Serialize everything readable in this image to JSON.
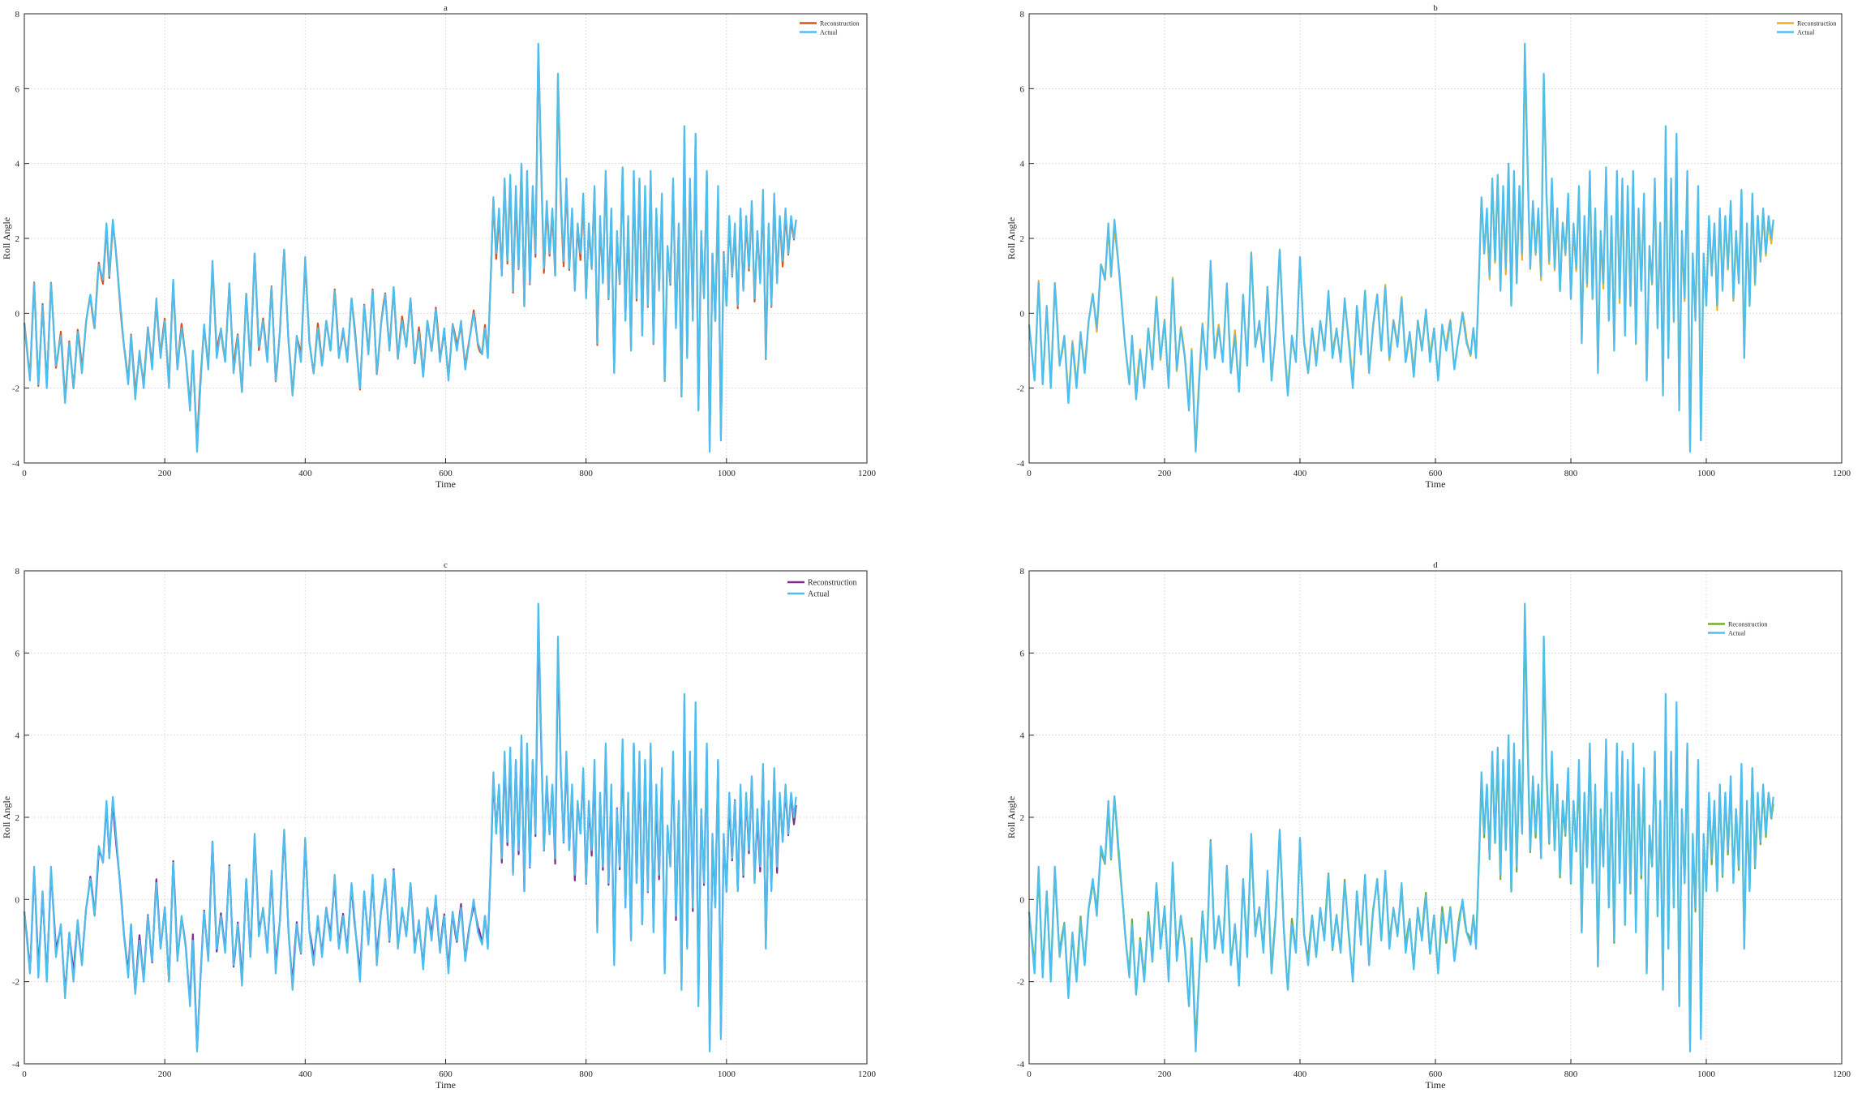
{
  "figure": {
    "background": "#ffffff",
    "actual_color": "#4dbeee"
  },
  "chart_data": [
    {
      "type": "line",
      "title": "a",
      "xlabel": "Time",
      "ylabel": "Roll Angle",
      "xlim": [
        0,
        1200
      ],
      "ylim": [
        -4,
        8
      ],
      "xticks": [
        0,
        200,
        400,
        600,
        800,
        1000,
        1200
      ],
      "yticks": [
        -4,
        -2,
        0,
        2,
        4,
        6,
        8
      ],
      "grid": true,
      "legend_position": "top-right",
      "series": [
        {
          "name": "Reconstruction",
          "color": "#d95319"
        },
        {
          "name": "Actual",
          "color": "#4dbeee"
        }
      ]
    },
    {
      "type": "line",
      "title": "b",
      "xlabel": "Time",
      "ylabel": "Roll Angle",
      "xlim": [
        0,
        1200
      ],
      "ylim": [
        -4,
        8
      ],
      "xticks": [
        0,
        200,
        400,
        600,
        800,
        1000,
        1200
      ],
      "yticks": [
        -4,
        -2,
        0,
        2,
        4,
        6,
        8
      ],
      "grid": true,
      "legend_position": "top-right",
      "series": [
        {
          "name": "Reconstruction",
          "color": "#edb120"
        },
        {
          "name": "Actual",
          "color": "#4dbeee"
        }
      ]
    },
    {
      "type": "line",
      "title": "c",
      "xlabel": "Time",
      "ylabel": "Roll Angle",
      "xlim": [
        0,
        1200
      ],
      "ylim": [
        -4,
        8
      ],
      "xticks": [
        0,
        200,
        400,
        600,
        800,
        1000,
        1200
      ],
      "yticks": [
        -4,
        -2,
        0,
        2,
        4,
        6,
        8
      ],
      "grid": true,
      "legend_position": "top-right",
      "series": [
        {
          "name": "Reconstruction",
          "color": "#7e2f8e"
        },
        {
          "name": "Actual",
          "color": "#4dbeee"
        }
      ]
    },
    {
      "type": "line",
      "title": "d",
      "xlabel": "Time",
      "ylabel": "Roll Angle",
      "xlim": [
        0,
        1200
      ],
      "ylim": [
        -4,
        8
      ],
      "xticks": [
        0,
        200,
        400,
        600,
        800,
        1000,
        1200
      ],
      "yticks": [
        -4,
        -2,
        0,
        2,
        4,
        6,
        8
      ],
      "grid": true,
      "legend_position": "upper-right",
      "series": [
        {
          "name": "Reconstruction",
          "color": "#77ac30"
        },
        {
          "name": "Actual",
          "color": "#4dbeee"
        }
      ]
    }
  ],
  "signal": {
    "length": 1100,
    "keypoints": [
      [
        0,
        -0.3
      ],
      [
        8,
        -1.8
      ],
      [
        14,
        0.8
      ],
      [
        20,
        -1.9
      ],
      [
        26,
        0.2
      ],
      [
        32,
        -2.0
      ],
      [
        38,
        0.8
      ],
      [
        45,
        -1.4
      ],
      [
        52,
        -0.6
      ],
      [
        58,
        -2.4
      ],
      [
        64,
        -0.8
      ],
      [
        70,
        -2.0
      ],
      [
        76,
        -0.5
      ],
      [
        82,
        -1.6
      ],
      [
        88,
        -0.2
      ],
      [
        94,
        0.5
      ],
      [
        100,
        -0.4
      ],
      [
        106,
        1.3
      ],
      [
        112,
        0.9
      ],
      [
        117,
        2.4
      ],
      [
        121,
        1.0
      ],
      [
        126,
        2.5
      ],
      [
        130,
        1.7
      ],
      [
        136,
        0.4
      ],
      [
        142,
        -0.9
      ],
      [
        148,
        -1.9
      ],
      [
        152,
        -0.6
      ],
      [
        158,
        -2.3
      ],
      [
        164,
        -1.0
      ],
      [
        170,
        -2.0
      ],
      [
        176,
        -0.4
      ],
      [
        182,
        -1.5
      ],
      [
        188,
        0.4
      ],
      [
        194,
        -1.2
      ],
      [
        200,
        -0.2
      ],
      [
        206,
        -2.0
      ],
      [
        212,
        0.9
      ],
      [
        218,
        -1.5
      ],
      [
        224,
        -0.4
      ],
      [
        230,
        -1.2
      ],
      [
        236,
        -2.6
      ],
      [
        240,
        -1.0
      ],
      [
        246,
        -3.7
      ],
      [
        250,
        -2.2
      ],
      [
        256,
        -0.3
      ],
      [
        262,
        -1.5
      ],
      [
        268,
        1.4
      ],
      [
        274,
        -1.2
      ],
      [
        280,
        -0.4
      ],
      [
        286,
        -1.3
      ],
      [
        292,
        0.8
      ],
      [
        298,
        -1.6
      ],
      [
        304,
        -0.6
      ],
      [
        310,
        -2.1
      ],
      [
        316,
        0.5
      ],
      [
        322,
        -1.4
      ],
      [
        328,
        1.6
      ],
      [
        334,
        -0.9
      ],
      [
        340,
        -0.2
      ],
      [
        346,
        -1.3
      ],
      [
        352,
        0.7
      ],
      [
        358,
        -1.8
      ],
      [
        364,
        -0.5
      ],
      [
        370,
        1.7
      ],
      [
        376,
        -0.7
      ],
      [
        382,
        -2.2
      ],
      [
        388,
        -0.6
      ],
      [
        394,
        -1.3
      ],
      [
        400,
        1.5
      ],
      [
        406,
        -0.8
      ],
      [
        412,
        -1.6
      ],
      [
        418,
        -0.4
      ],
      [
        424,
        -1.4
      ],
      [
        430,
        -0.2
      ],
      [
        436,
        -1.0
      ],
      [
        442,
        0.6
      ],
      [
        448,
        -1.2
      ],
      [
        454,
        -0.4
      ],
      [
        460,
        -1.3
      ],
      [
        466,
        0.4
      ],
      [
        472,
        -0.8
      ],
      [
        478,
        -2.0
      ],
      [
        484,
        0.2
      ],
      [
        490,
        -1.1
      ],
      [
        496,
        0.6
      ],
      [
        502,
        -1.6
      ],
      [
        508,
        -0.3
      ],
      [
        514,
        0.5
      ],
      [
        520,
        -1.0
      ],
      [
        526,
        0.7
      ],
      [
        532,
        -1.2
      ],
      [
        538,
        -0.2
      ],
      [
        544,
        -0.9
      ],
      [
        550,
        0.4
      ],
      [
        556,
        -1.3
      ],
      [
        562,
        -0.5
      ],
      [
        568,
        -1.7
      ],
      [
        574,
        -0.2
      ],
      [
        580,
        -1.0
      ],
      [
        586,
        0.1
      ],
      [
        592,
        -1.3
      ],
      [
        598,
        -0.4
      ],
      [
        604,
        -1.8
      ],
      [
        610,
        -0.3
      ],
      [
        616,
        -1.0
      ],
      [
        622,
        -0.2
      ],
      [
        628,
        -1.5
      ],
      [
        634,
        -0.7
      ],
      [
        640,
        0.0
      ],
      [
        646,
        -0.8
      ],
      [
        652,
        -1.1
      ],
      [
        656,
        -0.4
      ],
      [
        660,
        -1.2
      ],
      [
        664,
        0.8
      ],
      [
        668,
        3.1
      ],
      [
        672,
        1.6
      ],
      [
        676,
        2.8
      ],
      [
        680,
        1.0
      ],
      [
        684,
        3.6
      ],
      [
        688,
        1.4
      ],
      [
        692,
        3.7
      ],
      [
        696,
        0.6
      ],
      [
        700,
        3.4
      ],
      [
        704,
        1.2
      ],
      [
        708,
        4.0
      ],
      [
        712,
        0.2
      ],
      [
        716,
        3.8
      ],
      [
        720,
        0.8
      ],
      [
        724,
        3.4
      ],
      [
        728,
        1.6
      ],
      [
        732,
        7.2
      ],
      [
        736,
        4.0
      ],
      [
        740,
        1.2
      ],
      [
        744,
        3.0
      ],
      [
        748,
        1.6
      ],
      [
        752,
        2.8
      ],
      [
        756,
        1.0
      ],
      [
        760,
        6.4
      ],
      [
        764,
        3.2
      ],
      [
        768,
        1.4
      ],
      [
        772,
        3.6
      ],
      [
        776,
        1.2
      ],
      [
        780,
        2.8
      ],
      [
        784,
        0.6
      ],
      [
        788,
        2.4
      ],
      [
        792,
        1.6
      ],
      [
        796,
        3.2
      ],
      [
        800,
        0.4
      ],
      [
        804,
        2.4
      ],
      [
        808,
        1.2
      ],
      [
        812,
        3.4
      ],
      [
        816,
        -0.8
      ],
      [
        820,
        2.6
      ],
      [
        824,
        0.8
      ],
      [
        828,
        3.8
      ],
      [
        832,
        0.4
      ],
      [
        836,
        2.8
      ],
      [
        840,
        -1.6
      ],
      [
        844,
        2.2
      ],
      [
        848,
        0.8
      ],
      [
        852,
        3.9
      ],
      [
        856,
        -0.2
      ],
      [
        860,
        2.6
      ],
      [
        864,
        -1.0
      ],
      [
        868,
        3.8
      ],
      [
        872,
        0.4
      ],
      [
        876,
        3.6
      ],
      [
        880,
        -0.6
      ],
      [
        884,
        3.4
      ],
      [
        888,
        0.2
      ],
      [
        892,
        3.8
      ],
      [
        896,
        -0.8
      ],
      [
        900,
        2.8
      ],
      [
        904,
        0.6
      ],
      [
        908,
        3.2
      ],
      [
        912,
        -1.8
      ],
      [
        916,
        1.8
      ],
      [
        920,
        0.8
      ],
      [
        924,
        3.6
      ],
      [
        928,
        -0.4
      ],
      [
        932,
        2.4
      ],
      [
        936,
        -2.2
      ],
      [
        940,
        5.0
      ],
      [
        944,
        -1.2
      ],
      [
        948,
        3.6
      ],
      [
        952,
        -0.2
      ],
      [
        956,
        4.8
      ],
      [
        960,
        -2.6
      ],
      [
        964,
        2.2
      ],
      [
        968,
        0.4
      ],
      [
        972,
        3.8
      ],
      [
        976,
        -3.7
      ],
      [
        980,
        1.6
      ],
      [
        984,
        -0.2
      ],
      [
        988,
        3.4
      ],
      [
        992,
        -3.4
      ],
      [
        996,
        1.6
      ],
      [
        1000,
        0.2
      ],
      [
        1004,
        2.6
      ],
      [
        1008,
        1.0
      ],
      [
        1012,
        2.4
      ],
      [
        1016,
        0.2
      ],
      [
        1020,
        2.8
      ],
      [
        1024,
        0.6
      ],
      [
        1028,
        2.6
      ],
      [
        1032,
        1.2
      ],
      [
        1036,
        3.0
      ],
      [
        1040,
        0.4
      ],
      [
        1044,
        2.2
      ],
      [
        1048,
        0.8
      ],
      [
        1052,
        3.3
      ],
      [
        1056,
        -1.2
      ],
      [
        1060,
        2.4
      ],
      [
        1064,
        0.2
      ],
      [
        1068,
        3.2
      ],
      [
        1072,
        0.8
      ],
      [
        1076,
        2.6
      ],
      [
        1080,
        1.4
      ],
      [
        1084,
        2.8
      ],
      [
        1088,
        1.6
      ],
      [
        1092,
        2.6
      ],
      [
        1096,
        2.0
      ],
      [
        1099,
        2.5
      ]
    ]
  },
  "legend_text": {
    "reconstruction": "Reconstruction",
    "actual": "Actual"
  }
}
